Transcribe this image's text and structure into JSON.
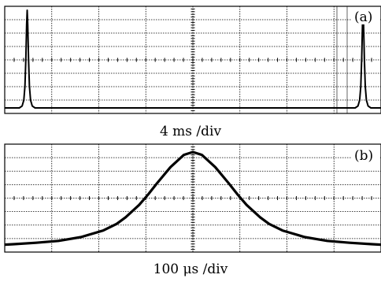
{
  "chart_data": [
    {
      "type": "line",
      "panel_label": "(a)",
      "xlabel": "4 ms /div",
      "x_unit": "ms",
      "xlim": [
        0,
        33.5
      ],
      "ylim": [
        0,
        1
      ],
      "grid": true,
      "series": [
        {
          "x": [
            0,
            1.3,
            1.55,
            1.7,
            1.8,
            1.88,
            1.95,
            2.0,
            2.05,
            2.12,
            2.2,
            2.3,
            2.45,
            2.7,
            31.2,
            31.45,
            31.6,
            31.7,
            31.78,
            31.85,
            31.9,
            31.95,
            32.02,
            32.1,
            32.2,
            32.35,
            32.6,
            33.5
          ],
          "y": [
            0,
            0,
            0.02,
            0.08,
            0.22,
            0.5,
            0.85,
            1.0,
            0.85,
            0.5,
            0.22,
            0.08,
            0.02,
            0,
            0,
            0.02,
            0.08,
            0.22,
            0.5,
            0.85,
            1.0,
            0.85,
            0.5,
            0.22,
            0.08,
            0.02,
            0,
            0
          ]
        }
      ]
    },
    {
      "type": "line",
      "panel_label": "(b)",
      "xlabel": "100 μs /div",
      "x_unit": "μs",
      "xlim": [
        -420,
        420
      ],
      "ylim": [
        0,
        1
      ],
      "grid": true,
      "series": [
        {
          "x": [
            -420,
            -400,
            -350,
            -300,
            -250,
            -200,
            -170,
            -150,
            -120,
            -100,
            -80,
            -50,
            -20,
            0,
            20,
            50,
            80,
            100,
            120,
            150,
            170,
            200,
            250,
            300,
            350,
            400,
            420
          ],
          "y": [
            0.02,
            0.025,
            0.04,
            0.06,
            0.1,
            0.17,
            0.24,
            0.31,
            0.44,
            0.55,
            0.67,
            0.84,
            0.97,
            1.0,
            0.97,
            0.84,
            0.67,
            0.55,
            0.44,
            0.31,
            0.24,
            0.17,
            0.1,
            0.06,
            0.04,
            0.025,
            0.02
          ]
        }
      ]
    }
  ]
}
